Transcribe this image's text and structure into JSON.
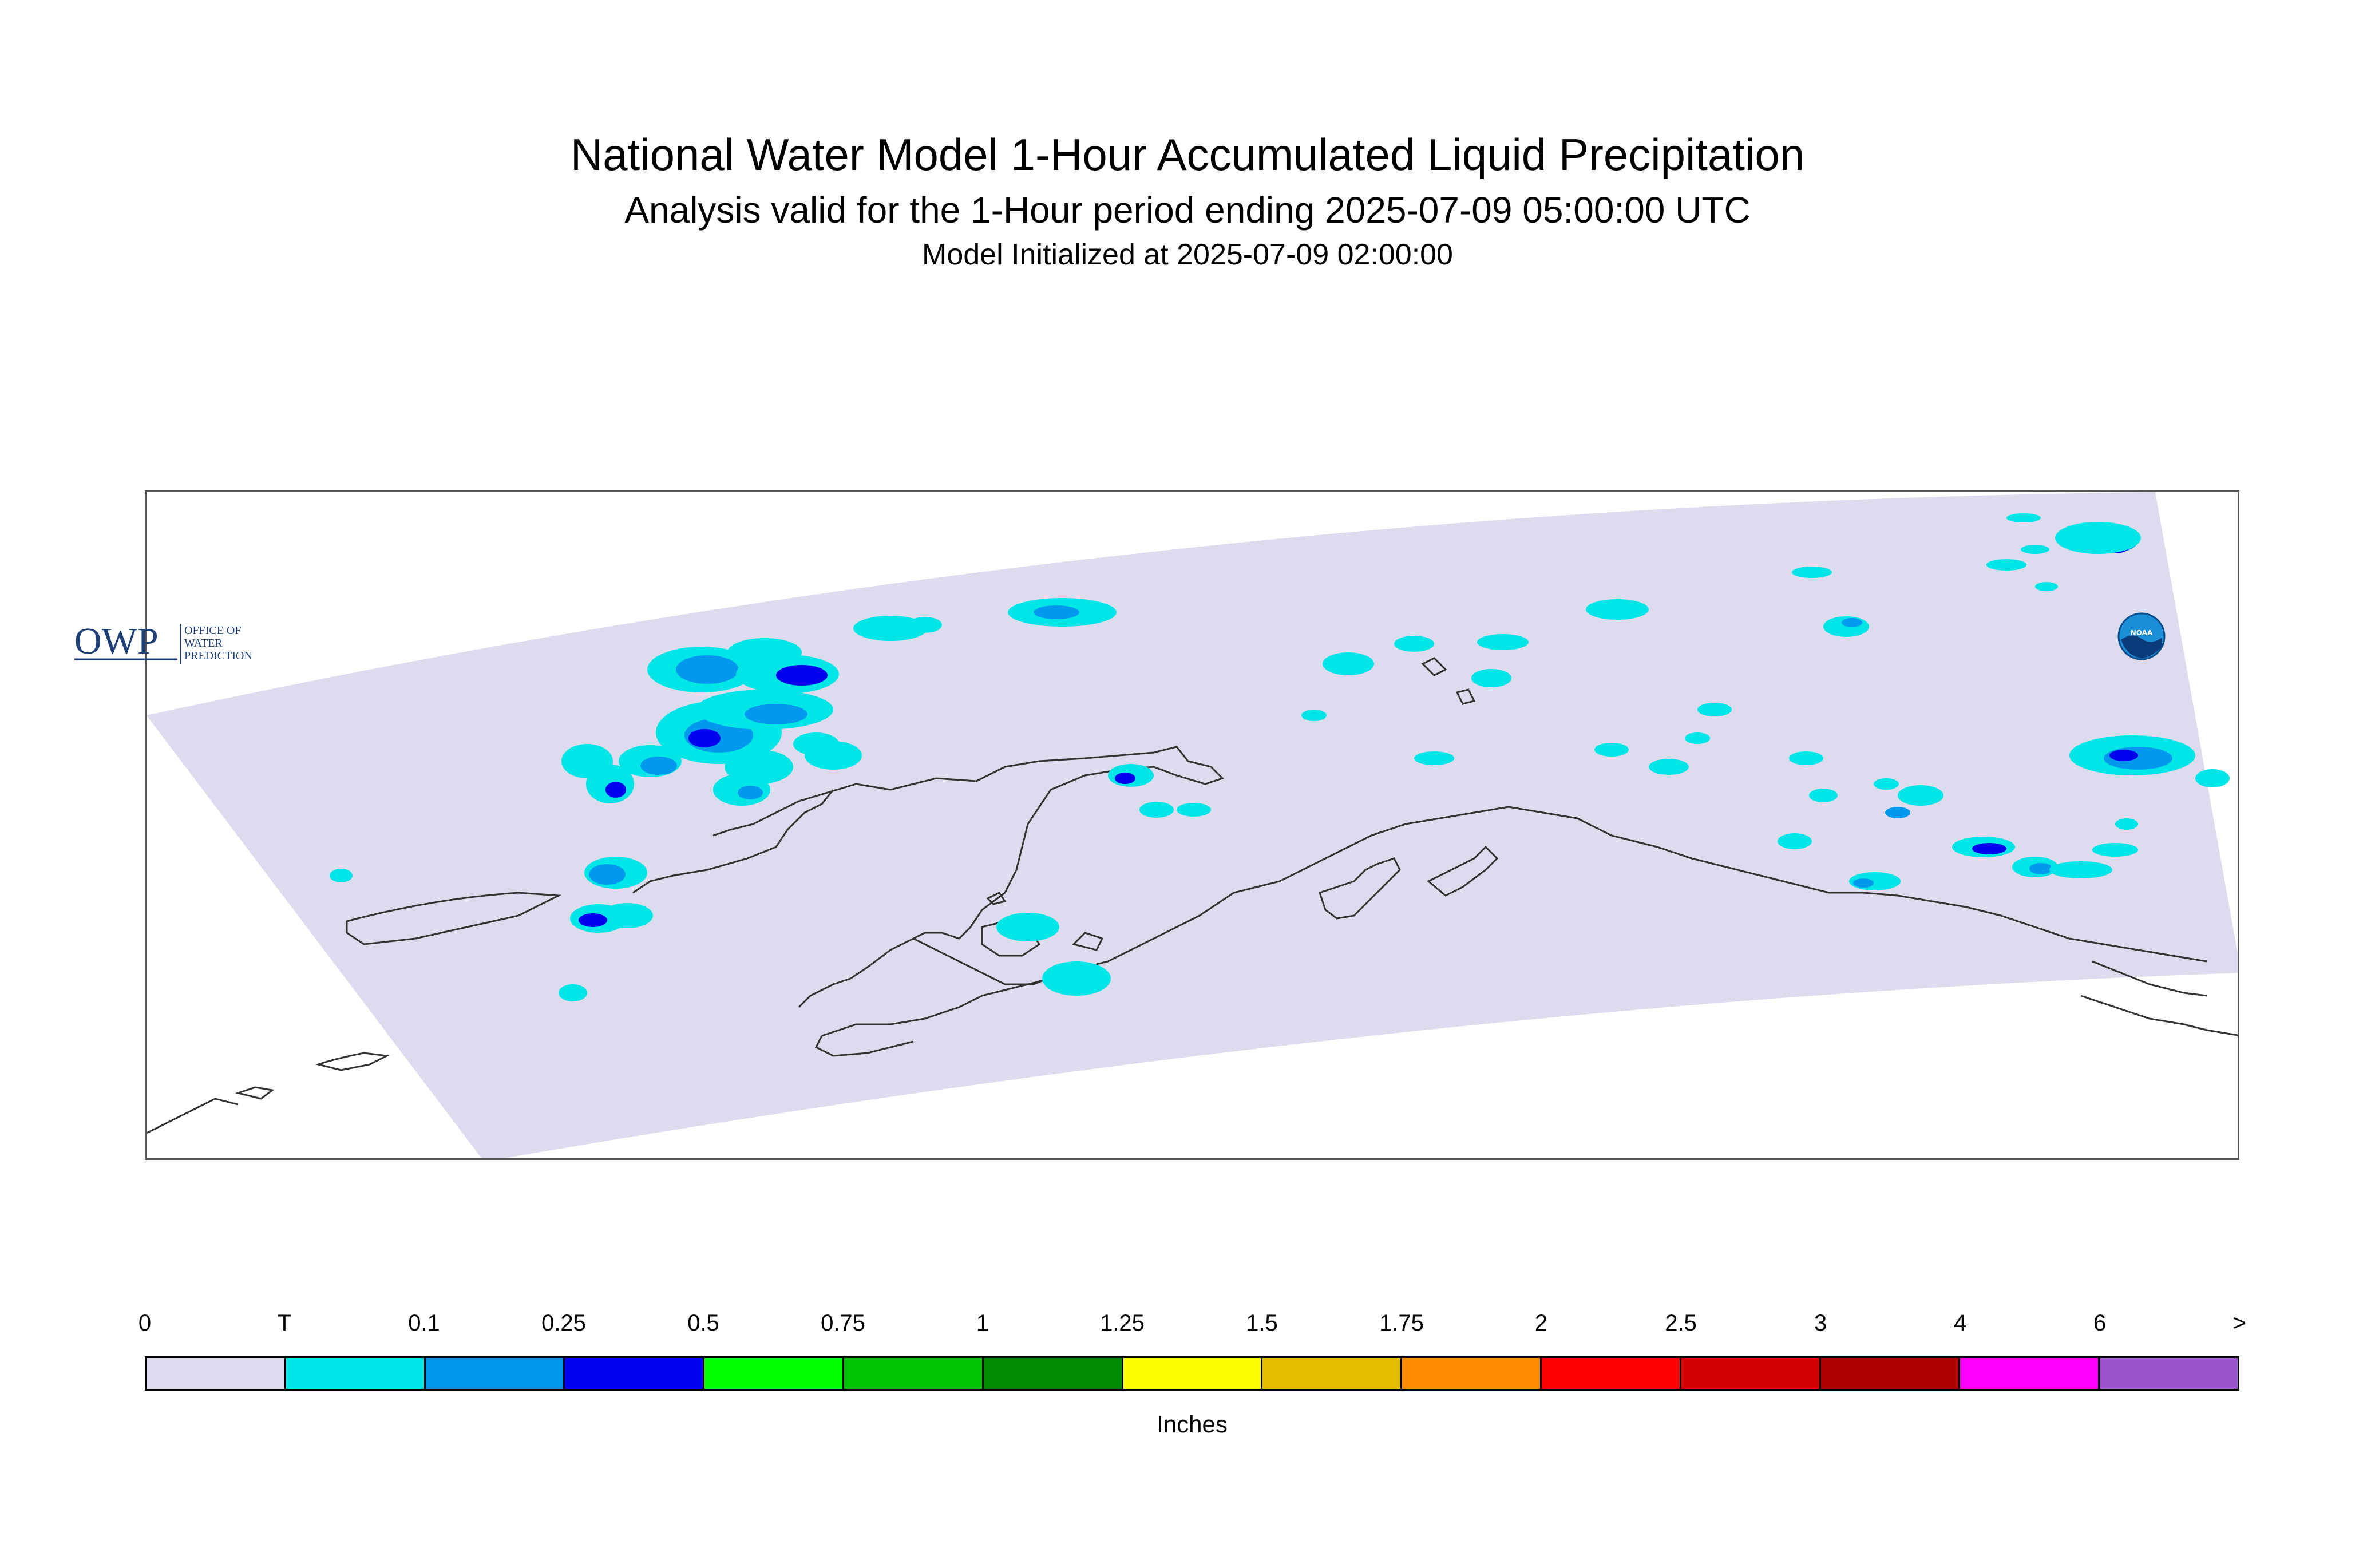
{
  "header": {
    "title": "National Water Model 1-Hour Accumulated Liquid Precipitation",
    "subtitle": "Analysis valid for the 1-Hour period ending 2025-07-09 05:00:00 UTC",
    "init": "Model Initialized at 2025-07-09 02:00:00"
  },
  "map": {
    "region": "Alaska",
    "domain_fill": "#dcdcee",
    "coastline_color": "#333333"
  },
  "logos": {
    "owp_letters": "OWP",
    "owp_text": [
      "OFFICE OF",
      "WATER",
      "PREDICTION"
    ],
    "noaa_text": "NOAA"
  },
  "legend": {
    "units": "Inches",
    "ticks": [
      "0",
      "T",
      "0.1",
      "0.25",
      "0.5",
      "0.75",
      "1",
      "1.25",
      "1.5",
      "1.75",
      "2",
      "2.5",
      "3",
      "4",
      "6",
      ">"
    ],
    "colors": [
      "#dcdcee",
      "#00e5e5",
      "#0099ee",
      "#0000ee",
      "#00ff00",
      "#00c400",
      "#008c00",
      "#ffff00",
      "#e5be00",
      "#ff8c00",
      "#ff0000",
      "#d40000",
      "#b00000",
      "#ff00ff",
      "#9955cc"
    ]
  }
}
